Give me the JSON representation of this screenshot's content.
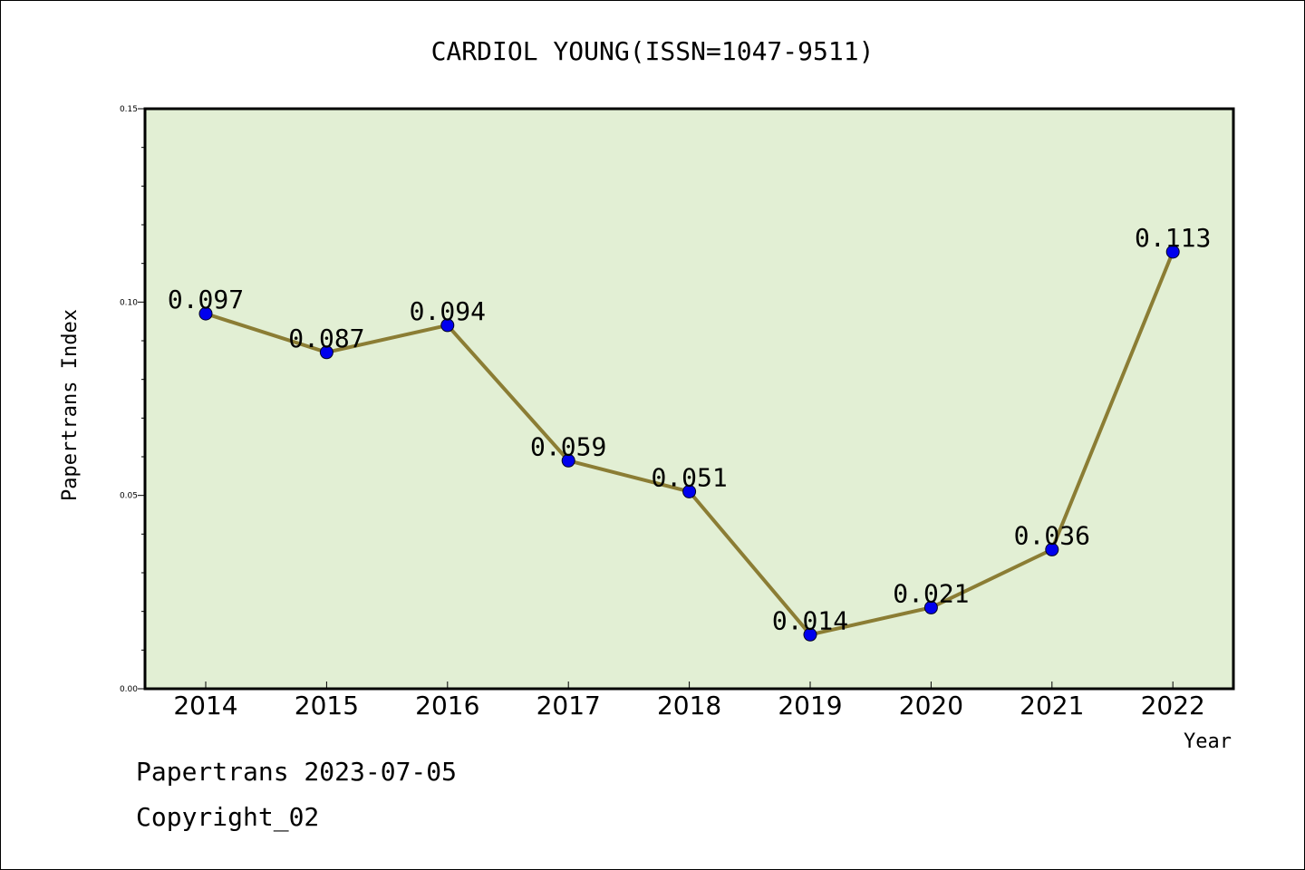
{
  "chart_data": {
    "type": "line",
    "title": "CARDIOL YOUNG(ISSN=1047-9511)",
    "xlabel": "Year",
    "ylabel": "Papertrans Index",
    "categories": [
      "2014",
      "2015",
      "2016",
      "2017",
      "2018",
      "2019",
      "2020",
      "2021",
      "2022"
    ],
    "values": [
      0.097,
      0.087,
      0.094,
      0.059,
      0.051,
      0.014,
      0.021,
      0.036,
      0.113
    ],
    "data_labels": [
      "0.097",
      "0.087",
      "0.094",
      "0.059",
      "0.051",
      "0.014",
      "0.021",
      "0.036",
      "0.113"
    ],
    "ylim": [
      0,
      0.15
    ],
    "yticks": [
      "0.00",
      "0.05",
      "0.10",
      "0.15"
    ],
    "grid": false,
    "colors": {
      "plot_background": "#e2efd4",
      "line": "#8b7d34",
      "marker": "#0000ee"
    }
  },
  "footer": {
    "line1": "Papertrans 2023-07-05",
    "line2": "Copyright_02"
  }
}
